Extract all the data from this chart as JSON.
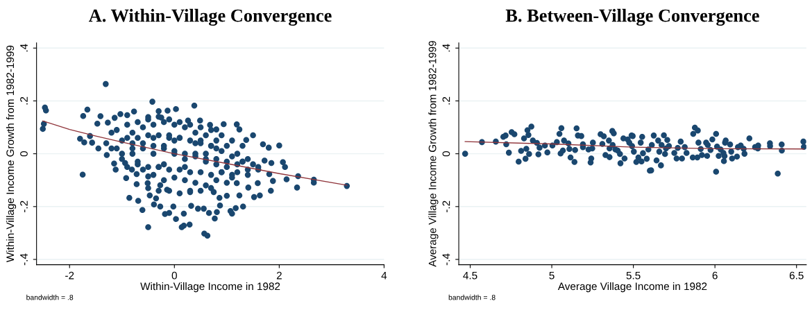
{
  "chart_data": [
    {
      "type": "scatter",
      "title": "A. Within-Village Convergence",
      "xlabel": "Within-Village Income in 1982",
      "ylabel": "Within-Village Income Growth from 1982-1999",
      "annotations": [
        "bandwidth = .8"
      ],
      "xlim": [
        -2.63,
        4.0
      ],
      "ylim": [
        -0.42,
        0.42
      ],
      "xticks": [
        -2,
        0,
        2,
        4
      ],
      "yticks": [
        {
          "value": -0.4,
          "label": "-.4"
        },
        {
          "value": -0.2,
          "label": "-.2"
        },
        {
          "value": 0,
          "label": "0"
        },
        {
          "value": 0.2,
          "label": ".2"
        },
        {
          "value": 0.4,
          "label": ".4"
        }
      ],
      "grid": "y",
      "legend": false,
      "series": [
        {
          "color": "#1a476f",
          "marker": "circle",
          "x": [
            -1.1,
            -0.9,
            -0.7,
            -0.5,
            -0.3,
            -0.1,
            0.1,
            0.3,
            0.5,
            0.7,
            0.9,
            1.1,
            1.3,
            -1.1,
            -0.9,
            -0.7,
            -0.5,
            -0.3,
            -0.1,
            0.1,
            0.3,
            0.5,
            0.7,
            0.9,
            1.1,
            1.3,
            -0.9,
            -0.7,
            -0.5,
            -0.3,
            -0.1,
            0.1,
            0.3,
            0.5,
            0.7,
            0.9,
            1.1,
            -0.5,
            -0.3,
            -0.1,
            0.1,
            0.3,
            0.5,
            0.7,
            -1.2,
            -1.0,
            -0.8,
            -0.6,
            -0.4,
            -0.2,
            0.0,
            0.2,
            0.4,
            0.6,
            0.8,
            1.0,
            1.2,
            1.4,
            1.6,
            -2.51,
            -2.49,
            -2.47,
            -2.45,
            -1.75,
            -1.31,
            -0.42,
            0.38,
            -1.74,
            -1.66,
            -1.8,
            -1.72,
            -1.41,
            -1.03,
            -0.77,
            -0.3,
            -0.13,
            0.03,
            0.49,
            1.19,
            0.94,
            1.24,
            1.5,
            1.69,
            1.8,
            2.0,
            2.07,
            2.11,
            2.14,
            2.36,
            2.34,
            2.66,
            2.66,
            3.29,
            1.88,
            1.84,
            1.63,
            1.52,
            1.31,
            1.17,
            1.1,
            1.07,
            1.24,
            1.0,
            0.86,
            0.87,
            0.77,
            0.81,
            0.66,
            0.63,
            0.57,
            0.56,
            0.45,
            0.32,
            0.29,
            0.18,
            0.14,
            0.18,
            0.03,
            -0.02,
            -0.1,
            -0.18,
            -0.27,
            -0.39,
            -0.5,
            -0.61,
            -0.69,
            -0.86,
            -0.72,
            -0.51,
            -0.47,
            -0.35,
            -1.12,
            -0.92,
            -1.15,
            -1.29,
            -1.45,
            -1.57,
            -1.61,
            -1.47,
            -1.27,
            -1.14,
            -0.9,
            -0.5,
            -0.25,
            0.26,
            0.68,
            0.8,
            1.37,
            1.72,
            1.85,
            1.81,
            1.59,
            1.41,
            1.19,
            0.75,
            0.3,
            -0.14,
            -0.27,
            -0.5,
            -0.72,
            -0.81,
            -0.94,
            -1.0,
            -0.8,
            -0.6,
            -0.4,
            -0.2,
            0,
            0.2,
            0.4,
            0.6,
            0.8,
            1.0,
            1.2,
            1.4,
            1.6,
            -1.0,
            -0.8,
            -0.6,
            -0.4,
            -0.2,
            0,
            0.2,
            0.4,
            0.6,
            0.8,
            1.0,
            1.2,
            1.4,
            -0.6,
            -0.4,
            -0.2,
            0,
            0.2,
            0.4,
            0.6,
            0.8,
            1.0,
            -0.8,
            -0.4,
            0,
            0.4,
            0.8,
            -0.2,
            0.2,
            0.6,
            -1.2,
            -1.3,
            1.5,
            1.3,
            -0.1,
            0.1,
            0.5,
            0.7,
            -0.7,
            -0.3,
            0.9,
            1.1
          ],
          "values": [
            0.09,
            0.11,
            0.12,
            0.13,
            0.14,
            0.13,
            0.12,
            0.11,
            0.1,
            0.09,
            0.07,
            0.05,
            0.03,
            0.02,
            0.06,
            0.06,
            0.07,
            0.07,
            0.06,
            0.06,
            0.05,
            0.04,
            0.03,
            0.01,
            -0.01,
            -0.03,
            -0.05,
            -0.04,
            -0.05,
            -0.05,
            -0.06,
            -0.06,
            -0.07,
            -0.07,
            -0.08,
            -0.07,
            -0.08,
            -0.13,
            -0.14,
            -0.14,
            -0.15,
            -0.14,
            -0.14,
            -0.13,
            0.02,
            0.0,
            0.02,
            0.04,
            0.03,
            0.02,
            0.01,
            0.0,
            -0.01,
            -0.02,
            -0.04,
            -0.03,
            -0.04,
            -0.06,
            -0.06,
            0.094,
            0.113,
            0.175,
            0.164,
            -0.079,
            0.264,
            0.197,
            0.182,
            0.143,
            0.167,
            0.057,
            0.043,
            0.142,
            0.15,
            0.16,
            0.161,
            0.163,
            0.169,
            0.126,
            0.111,
            0.112,
            0.092,
            0.07,
            0.036,
            0.023,
            0.031,
            -0.032,
            -0.05,
            -0.097,
            -0.085,
            -0.128,
            -0.098,
            -0.109,
            -0.122,
            -0.103,
            -0.14,
            -0.158,
            -0.164,
            -0.2,
            -0.206,
            -0.227,
            -0.217,
            -0.158,
            -0.159,
            -0.167,
            -0.196,
            -0.245,
            -0.221,
            -0.224,
            -0.31,
            -0.302,
            -0.208,
            -0.208,
            -0.197,
            -0.268,
            -0.272,
            -0.278,
            -0.227,
            -0.247,
            -0.2,
            -0.224,
            -0.228,
            -0.2,
            -0.192,
            -0.278,
            -0.213,
            -0.178,
            -0.167,
            -0.115,
            -0.111,
            -0.158,
            -0.169,
            -0.06,
            -0.092,
            -0.037,
            -0.005,
            0.02,
            0.042,
            0.067,
            0.114,
            0.118,
            0.136,
            0.146,
            0.139,
            0.137,
            0.126,
            0.109,
            0.092,
            0.052,
            -0.026,
            -0.035,
            -0.077,
            -0.111,
            -0.128,
            -0.111,
            -0.145,
            -0.145,
            -0.136,
            -0.119,
            -0.086,
            -0.077,
            -0.06,
            -0.035,
            0.05,
            0.08,
            0.1,
            0.11,
            0.12,
            0.11,
            0.1,
            0.08,
            0.07,
            0.05,
            0.03,
            0.0,
            -0.02,
            -0.05,
            -0.02,
            0.0,
            0.02,
            0.0,
            0.03,
            0.0,
            -0.02,
            0.0,
            -0.03,
            -0.02,
            -0.05,
            -0.07,
            -0.08,
            -0.06,
            -0.08,
            -0.1,
            -0.09,
            -0.1,
            -0.11,
            -0.12,
            -0.1,
            -0.11,
            0.04,
            0.06,
            0.05,
            0.04,
            0.02,
            -0.04,
            -0.05,
            0.0,
            0.08,
            0.04,
            -0.04,
            -0.03,
            0.07,
            0.06,
            0.05,
            0.03,
            -0.03,
            -0.05,
            -0.07,
            -0.09
          ]
        },
        {
          "type": "line",
          "color": "#90353b",
          "x": [
            -2.51,
            -2.0,
            -1.5,
            -1.0,
            0,
            1.0,
            2.0,
            3.29
          ],
          "values": [
            0.124,
            0.092,
            0.067,
            0.044,
            0.0,
            -0.037,
            -0.075,
            -0.119
          ]
        }
      ]
    },
    {
      "type": "scatter",
      "title": "B. Between-Village Convergence",
      "xlabel": "Average Village Income in 1982",
      "ylabel": "Average Village Income Growth from 1982-1999",
      "annotations": [
        "bandwidth = .8"
      ],
      "xlim": [
        4.43,
        6.56
      ],
      "ylim": [
        -0.42,
        0.42
      ],
      "xticks": [
        4.5,
        5,
        5.5,
        6,
        6.5
      ],
      "yticks": [
        {
          "value": -0.4,
          "label": "-.4"
        },
        {
          "value": -0.2,
          "label": "-.2"
        },
        {
          "value": 0,
          "label": "0"
        },
        {
          "value": 0.2,
          "label": ".2"
        },
        {
          "value": 0.4,
          "label": ".4"
        }
      ],
      "grid": "y",
      "legend": false,
      "series": [
        {
          "color": "#1a476f",
          "marker": "circle",
          "x": [
            4.469,
            4.572,
            4.657,
            4.703,
            4.717,
            4.754,
            4.771,
            4.721,
            4.737,
            4.797,
            4.812,
            4.83,
            4.839,
            4.844,
            4.851,
            4.857,
            4.861,
            4.875,
            4.884,
            4.909,
            4.918,
            4.925,
            4.958,
            4.973,
            5.004,
            5.031,
            5.047,
            5.054,
            5.059,
            5.068,
            5.075,
            5.102,
            5.108,
            5.115,
            5.139,
            5.143,
            5.152,
            5.16,
            5.181,
            5.191,
            5.191,
            5.225,
            5.238,
            5.242,
            5.252,
            5.248,
            5.299,
            5.319,
            5.31,
            5.329,
            5.35,
            5.354,
            5.354,
            5.371,
            5.38,
            5.373,
            5.39,
            5.404,
            5.418,
            5.421,
            5.439,
            5.446,
            5.465,
            5.475,
            5.489,
            5.496,
            5.492,
            5.503,
            5.518,
            5.531,
            5.545,
            5.554,
            5.55,
            5.559,
            5.582,
            5.592,
            5.601,
            5.609,
            5.613,
            5.625,
            5.642,
            5.652,
            5.659,
            5.669,
            5.673,
            5.687,
            5.694,
            5.7,
            5.708,
            5.718,
            5.751,
            5.765,
            5.772,
            5.79,
            5.798,
            5.815,
            5.826,
            5.867,
            5.864,
            5.877,
            5.895,
            5.892,
            5.899,
            5.913,
            5.92,
            5.946,
            5.956,
            5.952,
            5.973,
            5.984,
            6.007,
            6.007,
            6.013,
            6.023,
            6.035,
            6.052,
            6.055,
            6.062,
            6.066,
            6.059,
            6.1,
            6.105,
            6.093,
            6.135,
            6.141,
            6.158,
            6.176,
            6.181,
            6.211,
            6.246,
            6.265,
            6.263,
            6.337,
            6.338,
            6.385,
            6.409,
            6.41,
            6.542,
            6.545
          ],
          "values": [
            0.0,
            0.044,
            0.046,
            0.064,
            0.069,
            0.082,
            0.074,
            0.036,
            0.004,
            -0.03,
            0.011,
            0.058,
            -0.019,
            0.019,
            0.089,
            0.071,
            -0.001,
            0.103,
            0.05,
            0.041,
            -0.002,
            0.023,
            0.031,
            0.005,
            0.031,
            0.044,
            0.075,
            0.001,
            0.097,
            0.012,
            0.05,
            0.039,
            0.018,
            -0.014,
            -0.031,
            0.014,
            0.096,
            0.069,
            0.067,
            0.036,
            0.025,
            0.016,
            -0.033,
            -0.018,
            0.042,
            0.02,
            0.074,
            0.066,
            0.037,
            -0.005,
            0.05,
            0.02,
            -0.013,
            0.086,
            0.077,
            0.033,
            0.016,
            0.012,
            -0.001,
            -0.036,
            0.058,
            -0.018,
            0.054,
            0.042,
            0.069,
            0.067,
            0.029,
            0.008,
            -0.031,
            -0.014,
            0.042,
            0.064,
            -0.029,
            0.002,
            -0.019,
            0.016,
            -0.064,
            -0.063,
            0.033,
            0.069,
            -0.025,
            0.05,
            0.008,
            -0.044,
            0.033,
            0.07,
            -0.001,
            0.02,
            0.052,
            0.029,
            0.003,
            -0.018,
            0.022,
            0.046,
            -0.018,
            0.025,
            0.003,
            0.075,
            -0.014,
            0.099,
            0.088,
            -0.014,
            0.042,
            0.018,
            -0.005,
            0.042,
            0.033,
            -0.008,
            0.014,
            0.054,
            -0.068,
            0.075,
            0.027,
            -0.008,
            0.016,
            0.003,
            -0.028,
            0.042,
            0.05,
            -0.009,
            0.008,
            -0.018,
            0.035,
            -0.011,
            0.025,
            0.031,
            0.019,
            0.0,
            0.058,
            0.025,
            0.031,
            0.02,
            0.04,
            0.029,
            -0.075,
            0.035,
            0.012,
            0.046,
            0.026
          ]
        },
        {
          "type": "line",
          "color": "#90353b",
          "x": [
            4.469,
            5.0,
            5.5,
            6.0,
            6.545
          ],
          "values": [
            0.046,
            0.037,
            0.025,
            0.019,
            0.018
          ]
        }
      ]
    }
  ]
}
